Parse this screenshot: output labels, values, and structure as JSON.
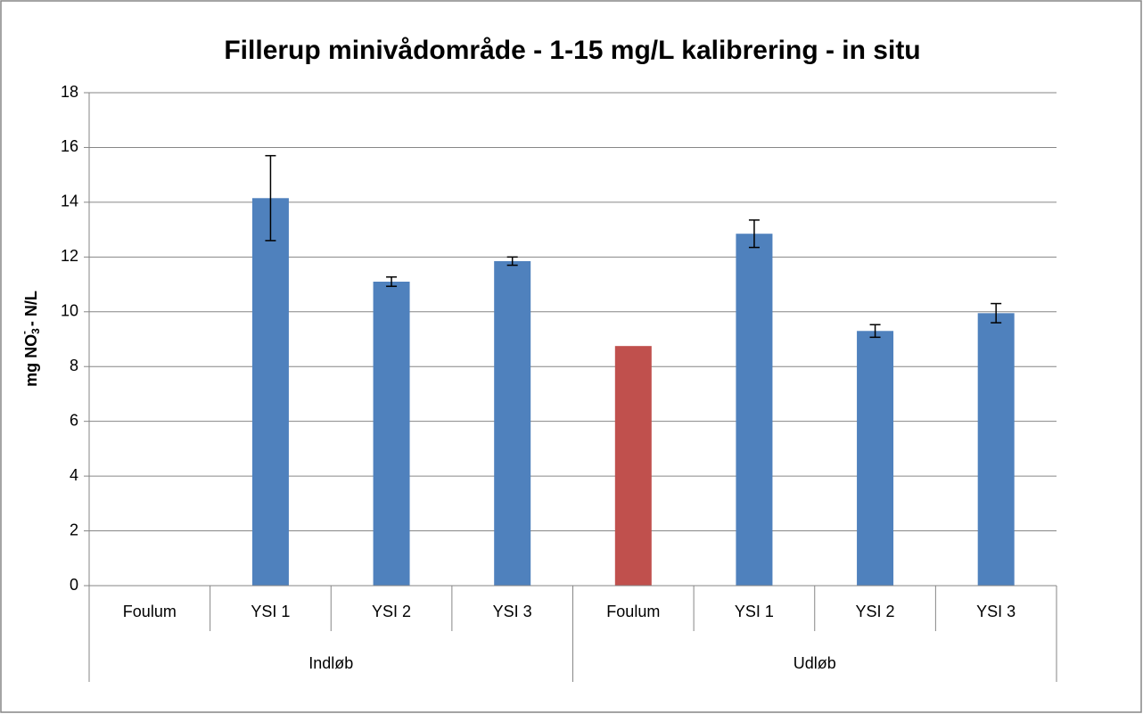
{
  "chart_data": {
    "type": "bar",
    "title": "Fillerup minivådområde - 1-15 mg/L kalibrering - in situ",
    "y_label_parts": [
      "mg NO",
      "3",
      "-",
      " - N/L"
    ],
    "categories": [
      "Foulum",
      "YSI 1",
      "YSI 2",
      "YSI 3",
      "Foulum",
      "YSI 1",
      "YSI 2",
      "YSI 3"
    ],
    "groups": [
      "Indløb",
      "Udløb"
    ],
    "values": [
      null,
      14.15,
      11.1,
      11.85,
      8.75,
      12.85,
      9.3,
      9.95
    ],
    "errors": [
      null,
      1.55,
      0.17,
      0.15,
      null,
      0.5,
      0.23,
      0.35
    ],
    "colors": [
      "#4f81bd",
      "#4f81bd",
      "#4f81bd",
      "#4f81bd",
      "#c0504d",
      "#4f81bd",
      "#4f81bd",
      "#4f81bd"
    ],
    "ylim": [
      0,
      18
    ],
    "yticks": [
      0,
      2,
      4,
      6,
      8,
      10,
      12,
      14,
      16,
      18
    ],
    "grid": true
  }
}
